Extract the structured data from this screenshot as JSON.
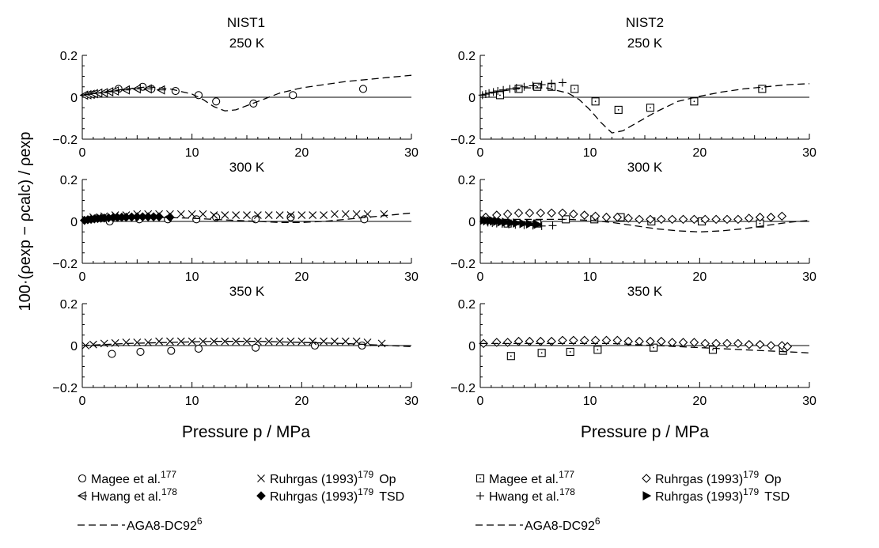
{
  "figure": {
    "ylabel": "100·(ρexp − ρcalc) / ρexp",
    "xlabel": "Pressure p / MPa",
    "columns": [
      "NIST1",
      "NIST2"
    ]
  },
  "legends": [
    {
      "items": [
        {
          "marker": "circle",
          "label": "Magee et al.",
          "sup": "177",
          "suffix": ""
        },
        {
          "marker": "x",
          "label": "Ruhrgas (1993)",
          "sup": "179",
          "suffix": "Op"
        },
        {
          "marker": "tri-left",
          "label": "Hwang et al.",
          "sup": "178",
          "suffix": ""
        },
        {
          "marker": "diamond-filled",
          "label": "Ruhrgas (1993)",
          "sup": "179",
          "suffix": "TSD"
        },
        {
          "marker": "dash",
          "label": "AGA8-DC92",
          "sup": "6",
          "suffix": ""
        }
      ]
    },
    {
      "items": [
        {
          "marker": "square-dot",
          "label": "Magee et al.",
          "sup": "177",
          "suffix": ""
        },
        {
          "marker": "diamond",
          "label": "Ruhrgas (1993)",
          "sup": "179",
          "suffix": "Op"
        },
        {
          "marker": "plus",
          "label": "Hwang et al.",
          "sup": "178",
          "suffix": ""
        },
        {
          "marker": "tri-right-filled",
          "label": "Ruhrgas (1993)",
          "sup": "179",
          "suffix": "TSD"
        },
        {
          "marker": "dash",
          "label": "AGA8-DC92",
          "sup": "6",
          "suffix": ""
        }
      ]
    }
  ],
  "chart_data": [
    {
      "type": "scatter",
      "title": "250 K",
      "column_title": "NIST1",
      "xlim": [
        0,
        30
      ],
      "ylim": [
        -0.2,
        0.2
      ],
      "xticks": [
        "0",
        "10",
        "20",
        "30"
      ],
      "yticks": [
        "−0.2",
        "0",
        "0.2"
      ],
      "series": [
        {
          "name": "Magee et al.",
          "marker": "circle",
          "x": [
            3.3,
            5.5,
            6.3,
            8.5,
            10.6,
            12.2,
            15.6,
            19.2,
            25.6
          ],
          "y": [
            0.04,
            0.05,
            0.04,
            0.03,
            0.01,
            -0.02,
            -0.03,
            0.01,
            0.04
          ]
        },
        {
          "name": "Hwang et al.",
          "marker": "tri-left",
          "x": [
            0.2,
            0.5,
            0.8,
            1.1,
            1.5,
            2.0,
            2.5,
            3.0,
            4.0,
            5.0,
            6.0,
            7.2
          ],
          "y": [
            0.01,
            0.012,
            0.014,
            0.017,
            0.02,
            0.022,
            0.026,
            0.03,
            0.035,
            0.04,
            0.04,
            0.035
          ]
        },
        {
          "name": "AGA8-DC92",
          "marker": "dash",
          "x": [
            0,
            2,
            4,
            6,
            8,
            10,
            11,
            12,
            13,
            14,
            15,
            16,
            17,
            18,
            20,
            22,
            24,
            26,
            28,
            30
          ],
          "y": [
            0.01,
            0.025,
            0.04,
            0.05,
            0.04,
            0.015,
            -0.01,
            -0.045,
            -0.065,
            -0.06,
            -0.04,
            -0.02,
            0,
            0.02,
            0.045,
            0.06,
            0.075,
            0.085,
            0.095,
            0.105
          ]
        }
      ]
    },
    {
      "type": "scatter",
      "title": "250 K",
      "column_title": "NIST2",
      "xlim": [
        0,
        30
      ],
      "ylim": [
        -0.2,
        0.2
      ],
      "xticks": [
        "0",
        "10",
        "20",
        "30"
      ],
      "yticks": [
        "−0.2",
        "0",
        "0.2"
      ],
      "series": [
        {
          "name": "Magee et al.",
          "marker": "square-dot",
          "x": [
            1.8,
            3.5,
            5.2,
            6.5,
            8.6,
            10.5,
            12.6,
            15.5,
            19.5,
            25.7
          ],
          "y": [
            0.01,
            0.04,
            0.05,
            0.05,
            0.04,
            -0.02,
            -0.06,
            -0.05,
            -0.02,
            0.04
          ]
        },
        {
          "name": "Hwang et al.",
          "marker": "plus",
          "x": [
            0.2,
            0.5,
            0.8,
            1.2,
            1.6,
            2.1,
            2.7,
            3.3,
            4.0,
            4.8,
            5.6,
            6.5,
            7.5
          ],
          "y": [
            0.01,
            0.015,
            0.02,
            0.025,
            0.03,
            0.035,
            0.04,
            0.045,
            0.05,
            0.055,
            0.06,
            0.065,
            0.07
          ]
        },
        {
          "name": "AGA8-DC92",
          "marker": "dash",
          "x": [
            0,
            2,
            4,
            6,
            8,
            9,
            10,
            11,
            12,
            13,
            14,
            16,
            18,
            20,
            22,
            24,
            26,
            28,
            30
          ],
          "y": [
            0.01,
            0.03,
            0.045,
            0.045,
            0.02,
            -0.01,
            -0.06,
            -0.12,
            -0.17,
            -0.16,
            -0.13,
            -0.07,
            -0.02,
            0.005,
            0.025,
            0.04,
            0.05,
            0.06,
            0.065
          ]
        }
      ]
    },
    {
      "type": "scatter",
      "title": "300 K",
      "column_title": "NIST1",
      "xlim": [
        0,
        30
      ],
      "ylim": [
        -0.2,
        0.2
      ],
      "xticks": [
        "0",
        "10",
        "20",
        "30"
      ],
      "yticks": [
        "−0.2",
        "0",
        "0.2"
      ],
      "series": [
        {
          "name": "Magee et al.",
          "marker": "circle",
          "x": [
            2.5,
            5.2,
            7.8,
            10.4,
            12.2,
            15.8,
            19.0,
            25.7
          ],
          "y": [
            0,
            0.01,
            0.01,
            0.01,
            0.02,
            0.01,
            0.02,
            0.01
          ]
        },
        {
          "name": "Ruhrgas (1993) Op",
          "marker": "x",
          "x": [
            0.3,
            1.0,
            2.0,
            3.0,
            4.0,
            5.0,
            6.0,
            7.0,
            8.0,
            9.0,
            10.0,
            11.0,
            12.0,
            13.0,
            14.0,
            15.0,
            16.0,
            17.0,
            18.0,
            19.0,
            20.0,
            21.0,
            22.0,
            23.0,
            24.0,
            25.0,
            26.0,
            27.5
          ],
          "y": [
            0.01,
            0.02,
            0.025,
            0.03,
            0.03,
            0.035,
            0.035,
            0.035,
            0.035,
            0.035,
            0.035,
            0.035,
            0.03,
            0.03,
            0.03,
            0.03,
            0.03,
            0.03,
            0.03,
            0.03,
            0.03,
            0.03,
            0.03,
            0.035,
            0.035,
            0.035,
            0.035,
            0.035
          ]
        },
        {
          "name": "Ruhrgas (1993) TSD",
          "marker": "diamond-filled",
          "x": [
            0.2,
            0.5,
            0.8,
            1.1,
            1.4,
            1.7,
            2.0,
            2.4,
            2.8,
            3.2,
            3.6,
            4.0,
            4.5,
            5.0,
            5.5,
            6.0,
            6.5,
            7.0,
            8.0
          ],
          "y": [
            0.005,
            0.008,
            0.01,
            0.012,
            0.014,
            0.015,
            0.016,
            0.017,
            0.018,
            0.019,
            0.02,
            0.02,
            0.021,
            0.022,
            0.022,
            0.022,
            0.022,
            0.022,
            0.02
          ]
        },
        {
          "name": "AGA8-DC92",
          "marker": "dash",
          "x": [
            0,
            2,
            4,
            6,
            8,
            10,
            12,
            14,
            16,
            18,
            20,
            22,
            24,
            26,
            28,
            30
          ],
          "y": [
            0.005,
            0.015,
            0.02,
            0.02,
            0.018,
            0.015,
            0.01,
            0.005,
            0,
            -0.005,
            -0.005,
            0,
            0.01,
            0.02,
            0.03,
            0.04
          ]
        }
      ]
    },
    {
      "type": "scatter",
      "title": "300 K",
      "column_title": "NIST2",
      "xlim": [
        0,
        30
      ],
      "ylim": [
        -0.2,
        0.2
      ],
      "xticks": [
        "0",
        "10",
        "20",
        "30"
      ],
      "yticks": [
        "−0.2",
        "0",
        "0.2"
      ],
      "series": [
        {
          "name": "Magee et al.",
          "marker": "square-dot",
          "x": [
            2.5,
            5.2,
            7.8,
            10.4,
            12.8,
            15.6,
            20.2,
            25.5
          ],
          "y": [
            -0.01,
            -0.01,
            0.01,
            0.01,
            0.02,
            0,
            0,
            -0.01
          ]
        },
        {
          "name": "Ruhrgas (1993) Op",
          "marker": "diamond",
          "x": [
            0.5,
            1.5,
            2.5,
            3.5,
            4.5,
            5.5,
            6.5,
            7.5,
            8.5,
            9.5,
            10.5,
            11.5,
            12.5,
            13.5,
            14.5,
            15.5,
            16.5,
            17.5,
            18.5,
            19.5,
            20.5,
            21.5,
            22.5,
            23.5,
            24.5,
            25.5,
            26.5,
            27.5
          ],
          "y": [
            0.02,
            0.03,
            0.035,
            0.04,
            0.04,
            0.04,
            0.04,
            0.04,
            0.035,
            0.03,
            0.025,
            0.02,
            0.02,
            0.015,
            0.01,
            0.01,
            0.01,
            0.01,
            0.01,
            0.01,
            0.01,
            0.01,
            0.01,
            0.01,
            0.015,
            0.02,
            0.02,
            0.025
          ]
        },
        {
          "name": "Hwang et al.",
          "marker": "plus",
          "x": [
            0.3,
            0.7,
            1.1,
            1.5,
            2.0,
            2.6,
            3.2,
            4.0,
            4.8,
            5.6,
            6.6
          ],
          "y": [
            0,
            -0.005,
            -0.008,
            -0.01,
            -0.012,
            -0.014,
            -0.016,
            -0.018,
            -0.02,
            -0.022,
            -0.02
          ]
        },
        {
          "name": "Ruhrgas (1993) TSD",
          "marker": "tri-right-filled",
          "x": [
            0.3,
            0.6,
            0.9,
            1.2,
            1.5,
            1.9,
            2.3,
            2.8,
            3.3,
            3.9,
            4.5,
            5.2
          ],
          "y": [
            0.005,
            0.004,
            0.003,
            0.002,
            0,
            -0.002,
            -0.004,
            -0.006,
            -0.008,
            -0.01,
            -0.012,
            -0.014
          ]
        },
        {
          "name": "AGA8-DC92",
          "marker": "dash",
          "x": [
            0,
            2,
            4,
            6,
            8,
            10,
            12,
            14,
            16,
            18,
            20,
            22,
            24,
            26,
            28,
            30
          ],
          "y": [
            0.01,
            0.01,
            0.01,
            0.01,
            0.01,
            0.005,
            -0.005,
            -0.02,
            -0.035,
            -0.045,
            -0.05,
            -0.045,
            -0.035,
            -0.02,
            -0.005,
            0.005
          ]
        }
      ]
    },
    {
      "type": "scatter",
      "title": "350 K",
      "column_title": "NIST1",
      "xlim": [
        0,
        30
      ],
      "ylim": [
        -0.2,
        0.2
      ],
      "xticks": [
        "0",
        "10",
        "20",
        "30"
      ],
      "yticks": [
        "−0.2",
        "0",
        "0.2"
      ],
      "series": [
        {
          "name": "Magee et al.",
          "marker": "circle",
          "x": [
            2.7,
            5.3,
            8.1,
            10.6,
            15.8,
            21.2,
            25.5
          ],
          "y": [
            -0.04,
            -0.03,
            -0.025,
            -0.015,
            -0.01,
            0,
            0
          ]
        },
        {
          "name": "Ruhrgas (1993) Op",
          "marker": "x",
          "x": [
            0.3,
            1.0,
            2.0,
            3.0,
            4.0,
            5.0,
            6.0,
            7.0,
            8.0,
            9.0,
            10.0,
            11.0,
            12.0,
            13.0,
            14.0,
            15.0,
            16.0,
            17.0,
            18.0,
            19.0,
            20.0,
            21.0,
            22.0,
            23.0,
            24.0,
            25.0,
            26.0,
            27.3
          ],
          "y": [
            0,
            0.005,
            0.01,
            0.012,
            0.015,
            0.015,
            0.015,
            0.02,
            0.02,
            0.02,
            0.02,
            0.02,
            0.02,
            0.02,
            0.02,
            0.02,
            0.02,
            0.02,
            0.02,
            0.02,
            0.02,
            0.02,
            0.02,
            0.02,
            0.02,
            0.02,
            0.015,
            0.01
          ]
        },
        {
          "name": "AGA8-DC92",
          "marker": "dash",
          "x": [
            0,
            4,
            8,
            12,
            16,
            20,
            24,
            28,
            30
          ],
          "y": [
            0,
            0.01,
            0.015,
            0.02,
            0.02,
            0.015,
            0.01,
            0,
            -0.005
          ]
        }
      ]
    },
    {
      "type": "scatter",
      "title": "350 K",
      "column_title": "NIST2",
      "xlim": [
        0,
        30
      ],
      "ylim": [
        -0.2,
        0.2
      ],
      "xticks": [
        "0",
        "10",
        "20",
        "30"
      ],
      "yticks": [
        "−0.2",
        "0",
        "0.2"
      ],
      "series": [
        {
          "name": "Magee et al.",
          "marker": "square-dot",
          "x": [
            2.8,
            5.6,
            8.2,
            10.7,
            15.8,
            21.2,
            27.6
          ],
          "y": [
            -0.05,
            -0.035,
            -0.03,
            -0.02,
            -0.01,
            -0.02,
            -0.025
          ]
        },
        {
          "name": "Ruhrgas (1993) Op",
          "marker": "diamond",
          "x": [
            0.3,
            1.5,
            2.5,
            3.5,
            4.5,
            5.5,
            6.5,
            7.5,
            8.5,
            9.5,
            10.5,
            11.5,
            12.5,
            13.5,
            14.5,
            15.5,
            16.5,
            17.5,
            18.5,
            19.5,
            20.5,
            21.5,
            22.5,
            23.5,
            24.5,
            25.5,
            26.5,
            27.5,
            28.0
          ],
          "y": [
            0.01,
            0.015,
            0.015,
            0.02,
            0.02,
            0.02,
            0.02,
            0.025,
            0.025,
            0.025,
            0.025,
            0.025,
            0.025,
            0.02,
            0.02,
            0.02,
            0.02,
            0.015,
            0.015,
            0.015,
            0.01,
            0.01,
            0.01,
            0.01,
            0.005,
            0.005,
            0,
            0,
            -0.005
          ]
        },
        {
          "name": "AGA8-DC92",
          "marker": "dash",
          "x": [
            0,
            4,
            8,
            12,
            16,
            20,
            24,
            28,
            30
          ],
          "y": [
            0.01,
            0.01,
            0.01,
            0.01,
            0,
            -0.01,
            -0.02,
            -0.03,
            -0.035
          ]
        }
      ]
    }
  ]
}
